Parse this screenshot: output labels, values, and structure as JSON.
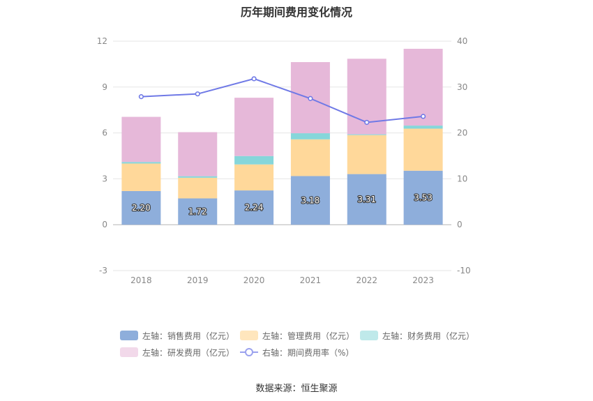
{
  "chart_data": {
    "type": "bar",
    "title": "历年期间费用变化情况",
    "categories": [
      "2018",
      "2019",
      "2020",
      "2021",
      "2022",
      "2023"
    ],
    "left_axis": {
      "ylim": [
        -3,
        12
      ],
      "ticks": [
        "-3",
        "0",
        "3",
        "6",
        "9",
        "12"
      ]
    },
    "right_axis": {
      "ylim": [
        -10,
        40
      ],
      "ticks": [
        "-10",
        "0",
        "10",
        "20",
        "30",
        "40"
      ]
    },
    "stacked": true,
    "series": [
      {
        "name": "左轴：销售费用（亿元）",
        "axis": "left",
        "color": "#8eaedb",
        "values": [
          2.2,
          1.72,
          2.24,
          3.18,
          3.31,
          3.53
        ],
        "labels": [
          "2.20",
          "1.72",
          "2.24",
          "3.18",
          "3.31",
          "3.53"
        ]
      },
      {
        "name": "左轴：管理费用（亿元）",
        "axis": "left",
        "color": "#ffd89a",
        "values": [
          1.8,
          1.35,
          1.7,
          2.4,
          2.55,
          2.75
        ]
      },
      {
        "name": "左轴：财务费用（亿元）",
        "axis": "left",
        "color": "#86d6da",
        "values": [
          0.1,
          0.1,
          0.55,
          0.4,
          0.05,
          0.2
        ]
      },
      {
        "name": "左轴：研发费用（亿元）",
        "axis": "left",
        "color": "#e6b8d9",
        "values": [
          2.95,
          2.88,
          3.81,
          4.65,
          4.94,
          5.02
        ]
      }
    ],
    "line_series": {
      "name": "右轴：期间费用率（%）",
      "axis": "right",
      "color": "#6f79e6",
      "values": [
        27.9,
        28.5,
        31.8,
        27.5,
        22.3,
        23.6
      ]
    },
    "legend_placement": "bottom",
    "grid": true
  },
  "source": "数据来源：恒生聚源"
}
